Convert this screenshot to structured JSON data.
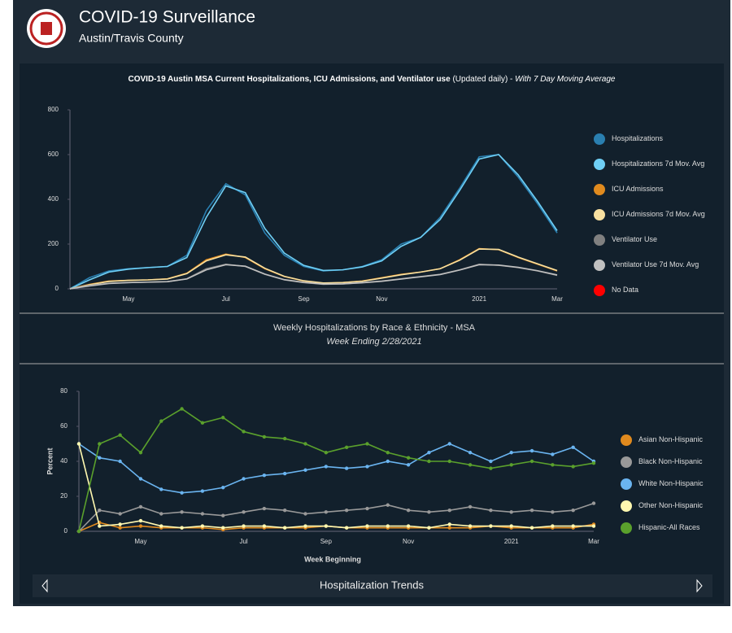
{
  "header": {
    "title": "COVID-19 Surveillance",
    "subtitle": "Austin/Travis County"
  },
  "footer": {
    "title": "Hospitalization Trends"
  },
  "chart_data": [
    {
      "type": "line",
      "title": "COVID-19 Austin MSA Current Hospitalizations, ICU Admissions, and Ventilator use",
      "title_note": "(Updated daily) - ",
      "title_italic": "With 7 Day Moving Average",
      "categories": [
        null,
        null,
        null,
        "May",
        null,
        null,
        null,
        null,
        "Jul",
        null,
        null,
        null,
        "Sep",
        null,
        null,
        null,
        "Nov",
        null,
        null,
        null,
        null,
        "2021",
        null,
        null,
        null,
        "Mar"
      ],
      "ylim": [
        0,
        800
      ],
      "yticks": [
        0,
        200,
        400,
        600,
        800
      ],
      "grid": false,
      "series": [
        {
          "name": "Hospitalizations",
          "color": "#2a7fb0",
          "values": [
            0,
            50,
            80,
            90,
            95,
            100,
            150,
            350,
            470,
            420,
            250,
            150,
            100,
            80,
            85,
            100,
            130,
            200,
            230,
            320,
            450,
            590,
            600,
            500,
            380,
            250
          ]
        },
        {
          "name": "Hospitalizations 7d Mov. Avg",
          "color": "#6fcff5",
          "values": [
            0,
            40,
            75,
            88,
            95,
            100,
            140,
            320,
            460,
            430,
            270,
            160,
            105,
            82,
            85,
            98,
            125,
            190,
            230,
            310,
            440,
            580,
            600,
            510,
            390,
            260
          ]
        },
        {
          "name": "ICU Admissions",
          "color": "#e08a1e",
          "values": [
            0,
            20,
            35,
            38,
            40,
            45,
            70,
            130,
            155,
            140,
            90,
            55,
            35,
            25,
            28,
            35,
            50,
            65,
            75,
            90,
            130,
            180,
            175,
            140,
            110,
            80
          ]
        },
        {
          "name": "ICU Admissions 7d Mov. Avg",
          "color": "#f8e0a0",
          "values": [
            0,
            18,
            33,
            38,
            40,
            44,
            68,
            125,
            152,
            142,
            92,
            56,
            36,
            26,
            28,
            34,
            48,
            63,
            75,
            90,
            128,
            178,
            176,
            142,
            112,
            82
          ]
        },
        {
          "name": "Ventilator Use",
          "color": "#808080",
          "values": [
            0,
            15,
            25,
            28,
            30,
            32,
            45,
            90,
            110,
            100,
            65,
            40,
            28,
            20,
            22,
            28,
            35,
            45,
            55,
            65,
            85,
            110,
            105,
            95,
            80,
            60
          ]
        },
        {
          "name": "Ventilator Use 7d Mov. Avg",
          "color": "#c0c0c0",
          "values": [
            0,
            13,
            24,
            28,
            30,
            32,
            44,
            85,
            108,
            101,
            66,
            41,
            29,
            21,
            22,
            27,
            34,
            44,
            54,
            64,
            84,
            108,
            106,
            96,
            81,
            62
          ]
        },
        {
          "name": "No Data",
          "color": "#ff0000",
          "values": [
            null,
            null,
            null,
            null,
            null,
            null,
            null,
            null,
            null,
            null,
            null,
            null,
            null,
            null,
            null,
            null,
            null,
            null,
            null,
            null,
            null,
            null,
            null,
            null,
            null,
            null
          ]
        }
      ]
    },
    {
      "type": "line",
      "title": "Weekly Hospitalizations by Race & Ethnicity - MSA",
      "subtitle": "Week Ending 2/28/2021",
      "x_label": "Week Beginning",
      "y_label": "Percent",
      "markers": true,
      "categories": [
        null,
        null,
        null,
        "May",
        null,
        null,
        null,
        null,
        "Jul",
        null,
        null,
        null,
        "Sep",
        null,
        null,
        null,
        "Nov",
        null,
        null,
        null,
        null,
        "2021",
        null,
        null,
        null,
        "Mar"
      ],
      "ylim": [
        0,
        80
      ],
      "yticks": [
        0,
        20,
        40,
        60,
        80
      ],
      "grid": false,
      "series": [
        {
          "name": "Asian Non-Hispanic",
          "color": "#e08a1e",
          "values": [
            0,
            5,
            2,
            3,
            2,
            2,
            2,
            1,
            2,
            2,
            2,
            2,
            3,
            2,
            2,
            2,
            2,
            2,
            2,
            2,
            3,
            2,
            2,
            2,
            2,
            4
          ]
        },
        {
          "name": "Black Non-Hispanic",
          "color": "#999999",
          "values": [
            0,
            12,
            10,
            14,
            10,
            11,
            10,
            9,
            11,
            13,
            12,
            10,
            11,
            12,
            13,
            15,
            12,
            11,
            12,
            14,
            12,
            11,
            12,
            11,
            12,
            16
          ]
        },
        {
          "name": "White Non-Hispanic",
          "color": "#6ab4f0",
          "values": [
            50,
            42,
            40,
            30,
            24,
            22,
            23,
            25,
            30,
            32,
            33,
            35,
            37,
            36,
            37,
            40,
            38,
            45,
            50,
            45,
            40,
            45,
            46,
            44,
            48,
            40
          ]
        },
        {
          "name": "Other Non-Hispanic",
          "color": "#fff8b0",
          "values": [
            50,
            3,
            4,
            6,
            3,
            2,
            3,
            2,
            3,
            3,
            2,
            3,
            3,
            2,
            3,
            3,
            3,
            2,
            4,
            3,
            3,
            3,
            2,
            3,
            3,
            3
          ]
        },
        {
          "name": "Hispanic-All Races",
          "color": "#5aa02c",
          "values": [
            0,
            50,
            55,
            45,
            63,
            70,
            62,
            65,
            57,
            54,
            53,
            50,
            45,
            48,
            50,
            45,
            42,
            40,
            40,
            38,
            36,
            38,
            40,
            38,
            37,
            39
          ]
        }
      ]
    }
  ]
}
